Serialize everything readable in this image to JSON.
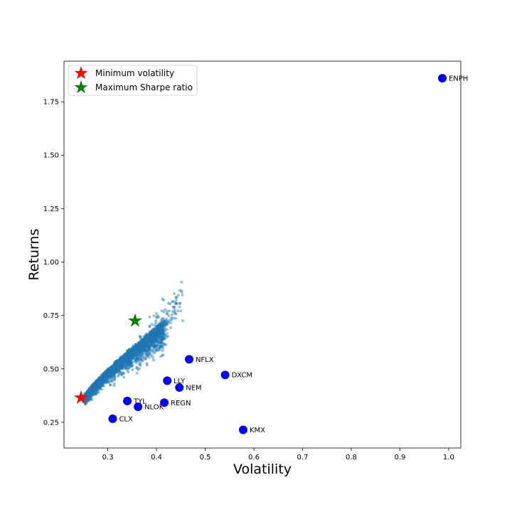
{
  "chart_data": {
    "type": "scatter",
    "xlabel": "Volatility",
    "ylabel": "Returns",
    "xlim": [
      0.21,
      1.025
    ],
    "ylim": [
      0.13,
      1.94
    ],
    "xticks": [
      "0.3",
      "0.4",
      "0.5",
      "0.6",
      "0.7",
      "0.8",
      "0.9",
      "1.0"
    ],
    "xtick_values": [
      0.3,
      0.4,
      0.5,
      0.6,
      0.7,
      0.8,
      0.9,
      1.0
    ],
    "yticks": [
      "0.25",
      "0.50",
      "0.75",
      "1.00",
      "1.25",
      "1.50",
      "1.75"
    ],
    "ytick_values": [
      0.25,
      0.5,
      0.75,
      1.0,
      1.25,
      1.5,
      1.75
    ],
    "grid": false,
    "legend_position": "top-left",
    "legend": [
      {
        "label": "Minimum volatility",
        "marker": "star",
        "color": "#ff0000"
      },
      {
        "label": "Maximum Sharpe ratio",
        "marker": "star",
        "color": "#008000"
      }
    ],
    "portfolio_cloud": {
      "color": "#1f77b4",
      "description_points": {
        "min_vol_x": 0.245,
        "min_vol_y": 0.36,
        "max_x": 0.45,
        "max_y": 0.87
      }
    },
    "min_volatility": {
      "x": 0.245,
      "y": 0.365
    },
    "max_sharpe": {
      "x": 0.356,
      "y": 0.725
    },
    "assets": [
      {
        "name": "ENPH",
        "x": 0.987,
        "y": 1.86
      },
      {
        "name": "NFLX",
        "x": 0.467,
        "y": 0.545
      },
      {
        "name": "DXCM",
        "x": 0.541,
        "y": 0.472
      },
      {
        "name": "LLY",
        "x": 0.422,
        "y": 0.445
      },
      {
        "name": "NEM",
        "x": 0.447,
        "y": 0.413
      },
      {
        "name": "TYL",
        "x": 0.34,
        "y": 0.35
      },
      {
        "name": "NLOK",
        "x": 0.362,
        "y": 0.323
      },
      {
        "name": "REGN",
        "x": 0.416,
        "y": 0.342
      },
      {
        "name": "CLX",
        "x": 0.31,
        "y": 0.267
      },
      {
        "name": "KMX",
        "x": 0.578,
        "y": 0.215
      }
    ],
    "asset_color": "#0000ff"
  }
}
